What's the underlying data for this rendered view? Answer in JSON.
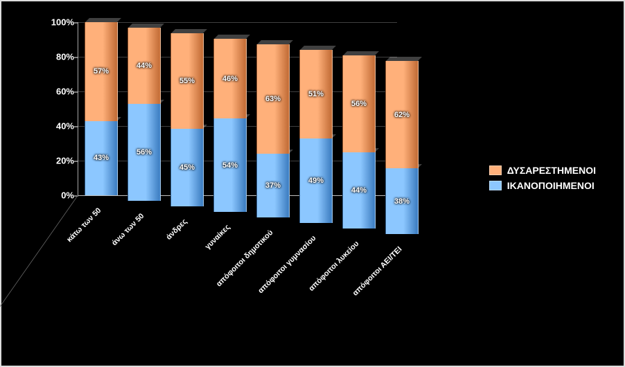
{
  "chart": {
    "type": "stacked-bar-3d",
    "background_color": "#000000",
    "frame_color": "#dddddd",
    "text_color": "#ffffff",
    "y_axis": {
      "ticks": [
        "0%",
        "20%",
        "40%",
        "60%",
        "80%",
        "100%"
      ],
      "min_pct": 0,
      "max_pct": 100,
      "step_pct": 20,
      "label_fontsize": 13
    },
    "series": [
      {
        "key": "ikanopoiimenoi",
        "label": "ΙΚΑΝΟΠΟΙΗΜΕΝΟΙ",
        "color": "#8cc7ff",
        "color_dark": "#3a7bbf"
      },
      {
        "key": "dysarestimenoi",
        "label": "ΔΥΣΑΡΕΣΤΗΜΕΝΟΙ",
        "color": "#ffb07a",
        "color_dark": "#c06a34"
      }
    ],
    "categories": [
      {
        "label": "κάτω των 50",
        "values": {
          "ikanopoiimenoi": 43,
          "dysarestimenoi": 57
        }
      },
      {
        "label": "άνω των 50",
        "values": {
          "ikanopoiimenoi": 56,
          "dysarestimenoi": 44
        }
      },
      {
        "label": "άνδρες",
        "values": {
          "ikanopoiimenoi": 45,
          "dysarestimenoi": 55
        }
      },
      {
        "label": "γυναίκες",
        "values": {
          "ikanopoiimenoi": 54,
          "dysarestimenoi": 46
        }
      },
      {
        "label": "απόφοιτοι δημοτικού",
        "values": {
          "ikanopoiimenoi": 37,
          "dysarestimenoi": 63
        }
      },
      {
        "label": "απόφοιτοι γυμνασίου",
        "values": {
          "ikanopoiimenoi": 49,
          "dysarestimenoi": 51
        }
      },
      {
        "label": "απόφοιτοι λυκείου",
        "values": {
          "ikanopoiimenoi": 44,
          "dysarestimenoi": 56
        }
      },
      {
        "label": "απόφοιτοι ΑΕΙ/ΤΕΙ",
        "values": {
          "ikanopoiimenoi": 38,
          "dysarestimenoi": 62
        }
      }
    ],
    "value_suffix": "%",
    "value_label_fontsize": 11,
    "category_label_fontsize": 11
  },
  "legend": {
    "items": [
      {
        "series_key": "dysarestimenoi"
      },
      {
        "series_key": "ikanopoiimenoi"
      }
    ],
    "fontsize": 14
  }
}
